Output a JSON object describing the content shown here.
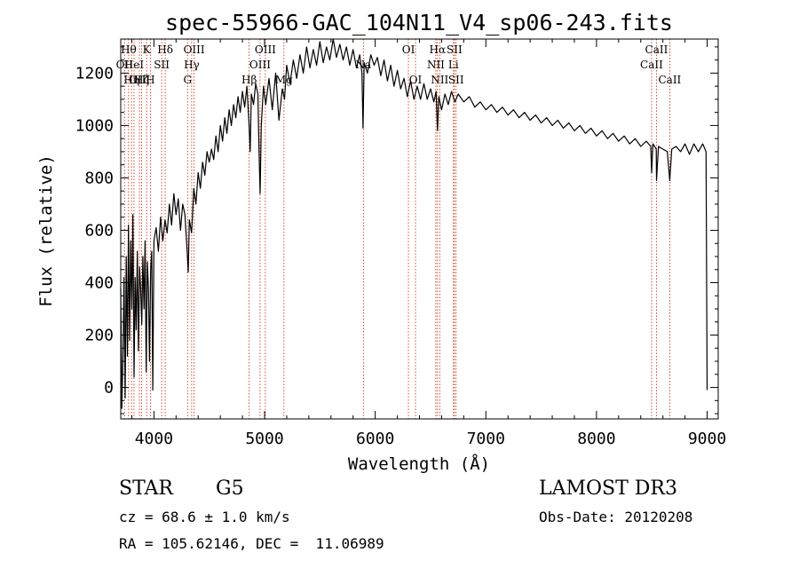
{
  "chart_data": {
    "type": "line",
    "title": "spec-55966-GAC_104N11_V4_sp06-243.fits",
    "xlabel": "Wavelength (Å)",
    "ylabel": "Flux (relative)",
    "xlim": [
      3700,
      9100
    ],
    "ylim": [
      -120,
      1330
    ],
    "x_ticks": [
      4000,
      5000,
      6000,
      7000,
      8000,
      9000
    ],
    "y_ticks": [
      0,
      200,
      400,
      600,
      800,
      1000,
      1200
    ],
    "x_minor_step": 200,
    "y_minor_step": 50,
    "series": [
      {
        "name": "spectrum",
        "color": "#000000",
        "points": [
          [
            3700,
            380
          ],
          [
            3710,
            -80
          ],
          [
            3720,
            120
          ],
          [
            3730,
            420
          ],
          [
            3740,
            -40
          ],
          [
            3750,
            500
          ],
          [
            3760,
            120
          ],
          [
            3770,
            620
          ],
          [
            3780,
            180
          ],
          [
            3790,
            560
          ],
          [
            3800,
            300
          ],
          [
            3810,
            660
          ],
          [
            3820,
            40
          ],
          [
            3830,
            420
          ],
          [
            3840,
            220
          ],
          [
            3850,
            520
          ],
          [
            3860,
            140
          ],
          [
            3870,
            460
          ],
          [
            3880,
            380
          ],
          [
            3890,
            240
          ],
          [
            3900,
            500
          ],
          [
            3910,
            300
          ],
          [
            3920,
            560
          ],
          [
            3930,
            60
          ],
          [
            3940,
            480
          ],
          [
            3950,
            380
          ],
          [
            3960,
            100
          ],
          [
            3970,
            450
          ],
          [
            3980,
            520
          ],
          [
            3990,
            -10
          ],
          [
            4000,
            560
          ],
          [
            4020,
            610
          ],
          [
            4040,
            520
          ],
          [
            4060,
            650
          ],
          [
            4080,
            560
          ],
          [
            4100,
            640
          ],
          [
            4120,
            590
          ],
          [
            4140,
            700
          ],
          [
            4160,
            620
          ],
          [
            4180,
            740
          ],
          [
            4200,
            660
          ],
          [
            4220,
            720
          ],
          [
            4240,
            600
          ],
          [
            4260,
            700
          ],
          [
            4280,
            660
          ],
          [
            4300,
            520
          ],
          [
            4310,
            440
          ],
          [
            4320,
            640
          ],
          [
            4340,
            590
          ],
          [
            4360,
            760
          ],
          [
            4380,
            700
          ],
          [
            4400,
            820
          ],
          [
            4420,
            760
          ],
          [
            4440,
            860
          ],
          [
            4460,
            810
          ],
          [
            4480,
            900
          ],
          [
            4500,
            860
          ],
          [
            4520,
            910
          ],
          [
            4540,
            870
          ],
          [
            4560,
            960
          ],
          [
            4580,
            900
          ],
          [
            4600,
            1000
          ],
          [
            4620,
            940
          ],
          [
            4640,
            1030
          ],
          [
            4660,
            970
          ],
          [
            4680,
            1060
          ],
          [
            4700,
            1000
          ],
          [
            4720,
            1080
          ],
          [
            4740,
            1030
          ],
          [
            4760,
            1110
          ],
          [
            4780,
            1050
          ],
          [
            4800,
            1130
          ],
          [
            4820,
            1070
          ],
          [
            4840,
            1150
          ],
          [
            4860,
            1000
          ],
          [
            4870,
            900
          ],
          [
            4880,
            1120
          ],
          [
            4900,
            1080
          ],
          [
            4920,
            1160
          ],
          [
            4940,
            1120
          ],
          [
            4950,
            900
          ],
          [
            4960,
            740
          ],
          [
            4970,
            1000
          ],
          [
            4990,
            1150
          ],
          [
            5010,
            1080
          ],
          [
            5040,
            1180
          ],
          [
            5070,
            1060
          ],
          [
            5100,
            1200
          ],
          [
            5130,
            1020
          ],
          [
            5160,
            1140
          ],
          [
            5180,
            1100
          ],
          [
            5200,
            1230
          ],
          [
            5230,
            1160
          ],
          [
            5260,
            1250
          ],
          [
            5290,
            1180
          ],
          [
            5320,
            1270
          ],
          [
            5350,
            1200
          ],
          [
            5380,
            1300
          ],
          [
            5410,
            1220
          ],
          [
            5440,
            1290
          ],
          [
            5470,
            1230
          ],
          [
            5500,
            1320
          ],
          [
            5530,
            1240
          ],
          [
            5560,
            1300
          ],
          [
            5590,
            1250
          ],
          [
            5620,
            1330
          ],
          [
            5650,
            1260
          ],
          [
            5680,
            1310
          ],
          [
            5710,
            1250
          ],
          [
            5740,
            1300
          ],
          [
            5770,
            1230
          ],
          [
            5800,
            1290
          ],
          [
            5830,
            1220
          ],
          [
            5860,
            1270
          ],
          [
            5880,
            1200
          ],
          [
            5890,
            990
          ],
          [
            5900,
            1240
          ],
          [
            5930,
            1200
          ],
          [
            5960,
            1270
          ],
          [
            5990,
            1230
          ],
          [
            6020,
            1260
          ],
          [
            6050,
            1190
          ],
          [
            6080,
            1250
          ],
          [
            6110,
            1170
          ],
          [
            6140,
            1230
          ],
          [
            6170,
            1150
          ],
          [
            6200,
            1210
          ],
          [
            6230,
            1140
          ],
          [
            6260,
            1180
          ],
          [
            6290,
            1110
          ],
          [
            6320,
            1170
          ],
          [
            6350,
            1100
          ],
          [
            6380,
            1150
          ],
          [
            6410,
            1100
          ],
          [
            6440,
            1160
          ],
          [
            6470,
            1100
          ],
          [
            6500,
            1140
          ],
          [
            6530,
            1090
          ],
          [
            6550,
            1130
          ],
          [
            6563,
            980
          ],
          [
            6575,
            1110
          ],
          [
            6600,
            1060
          ],
          [
            6630,
            1120
          ],
          [
            6660,
            1080
          ],
          [
            6690,
            1130
          ],
          [
            6720,
            1090
          ],
          [
            6750,
            1120
          ],
          [
            6800,
            1090
          ],
          [
            6850,
            1110
          ],
          [
            6900,
            1070
          ],
          [
            6950,
            1090
          ],
          [
            7000,
            1060
          ],
          [
            7050,
            1080
          ],
          [
            7100,
            1050
          ],
          [
            7150,
            1070
          ],
          [
            7200,
            1040
          ],
          [
            7250,
            1060
          ],
          [
            7300,
            1030
          ],
          [
            7350,
            1050
          ],
          [
            7400,
            1020
          ],
          [
            7450,
            1040
          ],
          [
            7500,
            1010
          ],
          [
            7550,
            1030
          ],
          [
            7600,
            1000
          ],
          [
            7650,
            1020
          ],
          [
            7700,
            990
          ],
          [
            7750,
            1010
          ],
          [
            7800,
            980
          ],
          [
            7850,
            1000
          ],
          [
            7900,
            970
          ],
          [
            7950,
            990
          ],
          [
            8000,
            960
          ],
          [
            8050,
            980
          ],
          [
            8100,
            950
          ],
          [
            8150,
            970
          ],
          [
            8200,
            940
          ],
          [
            8250,
            960
          ],
          [
            8300,
            930
          ],
          [
            8350,
            950
          ],
          [
            8400,
            920
          ],
          [
            8450,
            940
          ],
          [
            8490,
            920
          ],
          [
            8498,
            820
          ],
          [
            8510,
            930
          ],
          [
            8540,
            910
          ],
          [
            8542,
            790
          ],
          [
            8560,
            920
          ],
          [
            8600,
            910
          ],
          [
            8640,
            900
          ],
          [
            8662,
            790
          ],
          [
            8680,
            910
          ],
          [
            8720,
            920
          ],
          [
            8760,
            900
          ],
          [
            8800,
            930
          ],
          [
            8840,
            890
          ],
          [
            8880,
            930
          ],
          [
            8920,
            900
          ],
          [
            8960,
            930
          ],
          [
            8990,
            900
          ],
          [
            9000,
            -10
          ]
        ]
      }
    ],
    "lines": [
      {
        "wl": 3734,
        "label": "OII",
        "row": 2
      },
      {
        "wl": 3771,
        "label": "Hθ",
        "row": 1
      },
      {
        "wl": 3798,
        "label": "Hη",
        "row": 3
      },
      {
        "wl": 3820,
        "label": "HeI",
        "row": 2
      },
      {
        "wl": 3869,
        "label": "OIII",
        "row": 3
      },
      {
        "wl": 3889,
        "label": "Hζ",
        "row": 3
      },
      {
        "wl": 3934,
        "label": "K",
        "row": 1
      },
      {
        "wl": 3968,
        "label": "H",
        "row": 3
      },
      {
        "wl": 4070,
        "label": "SII",
        "row": 2
      },
      {
        "wl": 4102,
        "label": "Hδ",
        "row": 1
      },
      {
        "wl": 4304,
        "label": "G",
        "row": 3
      },
      {
        "wl": 4341,
        "label": "Hγ",
        "row": 2
      },
      {
        "wl": 4363,
        "label": "OIII",
        "row": 1
      },
      {
        "wl": 4861,
        "label": "Hβ",
        "row": 3
      },
      {
        "wl": 4959,
        "label": "OIII",
        "row": 2
      },
      {
        "wl": 5007,
        "label": "OIII",
        "row": 1
      },
      {
        "wl": 5175,
        "label": "Mg",
        "row": 3
      },
      {
        "wl": 5893,
        "label": "Na",
        "row": 2
      },
      {
        "wl": 6300,
        "label": "OI",
        "row": 1
      },
      {
        "wl": 6364,
        "label": "OI",
        "row": 3
      },
      {
        "wl": 6548,
        "label": "NII",
        "row": 2
      },
      {
        "wl": 6563,
        "label": "Hα",
        "row": 1
      },
      {
        "wl": 6583,
        "label": "NII",
        "row": 3
      },
      {
        "wl": 6707,
        "label": "Li",
        "row": 2
      },
      {
        "wl": 6716,
        "label": "SII",
        "row": 1
      },
      {
        "wl": 6731,
        "label": "SII",
        "row": 3
      },
      {
        "wl": 8498,
        "label": "CaII",
        "row": 2
      },
      {
        "wl": 8542,
        "label": "CaII",
        "row": 1
      },
      {
        "wl": 8662,
        "label": "CaII",
        "row": 3
      }
    ]
  },
  "info": {
    "object_class": "STAR",
    "subclass": "G5",
    "survey": "LAMOST DR3",
    "cz": "cz = 68.6 ± 1.0 km/s",
    "obs_date": "Obs-Date: 20120208",
    "coords": "RA = 105.62146, DEC =  11.06989"
  }
}
